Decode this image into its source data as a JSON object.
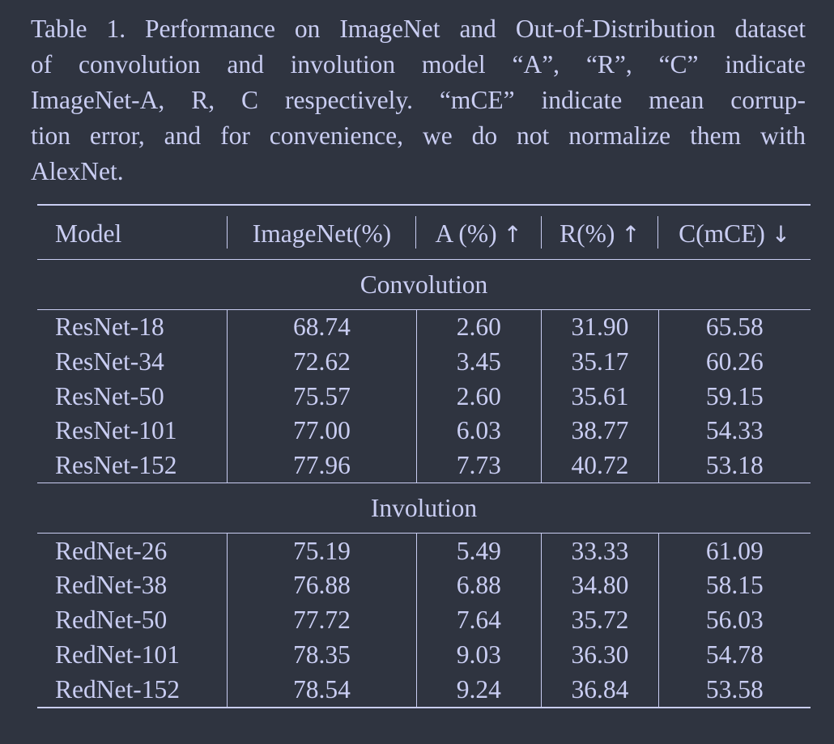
{
  "caption": {
    "lines": [
      "Table 1. Performance on ImageNet and Out-of-Distribution dataset",
      "of convolution and involution model “A”, “R”, “C” indicate",
      "ImageNet-A, R, C respectively.  “mCE” indicate mean corrup-",
      "tion error, and for convenience, we do not normalize them with",
      "AlexNet."
    ]
  },
  "table": {
    "headers": {
      "model": "Model",
      "imagenet": "ImageNet(%)",
      "a": "A (%)",
      "a_arrow": "↑",
      "r": "R(%)",
      "r_arrow": "↑",
      "c": "C(mCE)",
      "c_arrow": "↓"
    },
    "sections": [
      {
        "title": "Convolution",
        "rows": [
          {
            "model": "ResNet-18",
            "imagenet": "68.74",
            "a": "2.60",
            "r": "31.90",
            "c": "65.58"
          },
          {
            "model": "ResNet-34",
            "imagenet": "72.62",
            "a": "3.45",
            "r": "35.17",
            "c": "60.26"
          },
          {
            "model": "ResNet-50",
            "imagenet": "75.57",
            "a": "2.60",
            "r": "35.61",
            "c": "59.15"
          },
          {
            "model": "ResNet-101",
            "imagenet": "77.00",
            "a": "6.03",
            "r": "38.77",
            "c": "54.33"
          },
          {
            "model": "ResNet-152",
            "imagenet": "77.96",
            "a": "7.73",
            "r": "40.72",
            "c": "53.18"
          }
        ]
      },
      {
        "title": "Involution",
        "rows": [
          {
            "model": "RedNet-26",
            "imagenet": "75.19",
            "a": "5.49",
            "r": "33.33",
            "c": "61.09"
          },
          {
            "model": "RedNet-38",
            "imagenet": "76.88",
            "a": "6.88",
            "r": "34.80",
            "c": "58.15"
          },
          {
            "model": "RedNet-50",
            "imagenet": "77.72",
            "a": "7.64",
            "r": "35.72",
            "c": "56.03"
          },
          {
            "model": "RedNet-101",
            "imagenet": "78.35",
            "a": "9.03",
            "r": "36.30",
            "c": "54.78"
          },
          {
            "model": "RedNet-152",
            "imagenet": "78.54",
            "a": "9.24",
            "r": "36.84",
            "c": "53.58"
          }
        ]
      }
    ]
  }
}
